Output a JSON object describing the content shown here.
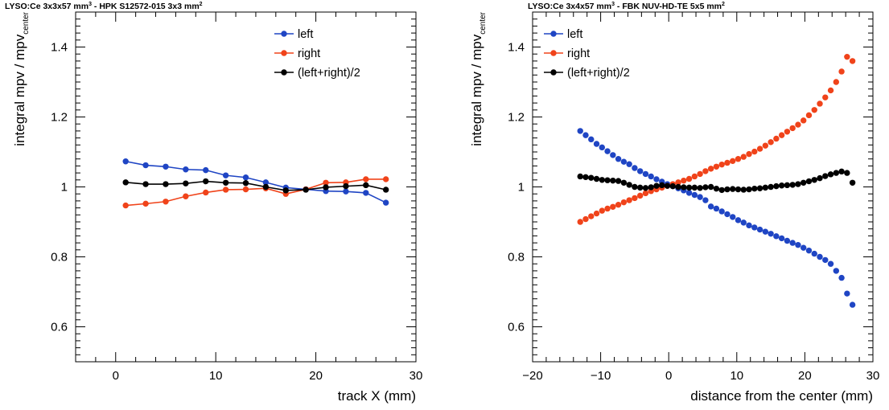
{
  "chart_data": [
    {
      "type": "scatter",
      "title": "LYSO:Ce 3x3x57 mm³ - HPK S12572-015 3x3 mm²",
      "title_parts": [
        "LYSO:Ce 3x3x57 mm",
        "3",
        " - HPK S12572-015 3x3 mm",
        "2"
      ],
      "xlabel": "track X (mm)",
      "ylabel": "integral mpv / mpv",
      "ylabel_sub": "center",
      "xlim": [
        -4,
        30
      ],
      "ylim": [
        0.5,
        1.5
      ],
      "xticks": [
        0,
        10,
        20,
        30
      ],
      "yticks": [
        0.6,
        0.8,
        1,
        1.2,
        1.4
      ],
      "connected": true,
      "legend_position": "top-right",
      "series": [
        {
          "name": "left",
          "color": "#1f45c4",
          "x": [
            1,
            3,
            5,
            7,
            9,
            11,
            13,
            15,
            17,
            19,
            21,
            23,
            25,
            27
          ],
          "y": [
            1.073,
            1.062,
            1.058,
            1.05,
            1.048,
            1.033,
            1.027,
            1.013,
            0.998,
            0.993,
            0.988,
            0.987,
            0.983,
            0.955
          ]
        },
        {
          "name": "right",
          "color": "#f0431a",
          "x": [
            1,
            3,
            5,
            7,
            9,
            11,
            13,
            15,
            17,
            19,
            21,
            23,
            25,
            27
          ],
          "y": [
            0.947,
            0.952,
            0.958,
            0.973,
            0.984,
            0.992,
            0.993,
            0.996,
            0.98,
            0.993,
            1.012,
            1.013,
            1.022,
            1.022
          ]
        },
        {
          "name": "(left+right)/2",
          "color": "#000000",
          "x": [
            1,
            3,
            5,
            7,
            9,
            11,
            13,
            15,
            17,
            19,
            21,
            23,
            25,
            27
          ],
          "y": [
            1.013,
            1.008,
            1.008,
            1.01,
            1.016,
            1.012,
            1.011,
            1.0,
            0.99,
            0.992,
            0.999,
            1.002,
            1.005,
            0.992
          ]
        }
      ]
    },
    {
      "type": "scatter",
      "title": "LYSO:Ce 3x4x57 mm³ - FBK NUV-HD-TE 5x5 mm²",
      "title_parts": [
        "LYSO:Ce 3x4x57 mm",
        "3",
        " - FBK NUV-HD-TE 5x5 mm",
        "2"
      ],
      "xlabel": "distance from the center (mm)",
      "ylabel": "integral mpv / mpv",
      "ylabel_sub": "center",
      "xlim": [
        -20,
        30
      ],
      "ylim": [
        0.5,
        1.5
      ],
      "xticks": [
        -20,
        -10,
        0,
        10,
        20,
        30
      ],
      "yticks": [
        0.6,
        0.8,
        1,
        1.2,
        1.4
      ],
      "connected": false,
      "legend_position": "top-left",
      "series": [
        {
          "name": "left",
          "color": "#1f45c4",
          "x": [
            -13,
            -12.2,
            -11.4,
            -10.6,
            -9.8,
            -9,
            -8.2,
            -7.4,
            -6.6,
            -5.8,
            -5,
            -4.2,
            -3.4,
            -2.6,
            -1.8,
            -1,
            -0.2,
            0.6,
            1.4,
            2.2,
            3,
            3.8,
            4.6,
            5.4,
            6.2,
            7,
            7.8,
            8.6,
            9.4,
            10.2,
            11,
            11.8,
            12.6,
            13.4,
            14.2,
            15,
            15.8,
            16.6,
            17.4,
            18.2,
            19,
            19.8,
            20.6,
            21.4,
            22.2,
            23,
            23.8,
            24.6,
            25.4,
            26.2,
            27
          ],
          "y": [
            1.16,
            1.148,
            1.136,
            1.123,
            1.113,
            1.102,
            1.091,
            1.08,
            1.072,
            1.065,
            1.054,
            1.045,
            1.037,
            1.03,
            1.022,
            1.015,
            1.008,
            1.002,
            0.996,
            0.99,
            0.983,
            0.977,
            0.971,
            0.962,
            0.944,
            0.938,
            0.93,
            0.922,
            0.914,
            0.905,
            0.898,
            0.89,
            0.884,
            0.878,
            0.872,
            0.866,
            0.859,
            0.853,
            0.846,
            0.84,
            0.834,
            0.826,
            0.818,
            0.809,
            0.8,
            0.791,
            0.78,
            0.76,
            0.74,
            0.695,
            0.663
          ]
        },
        {
          "name": "right",
          "color": "#f0431a",
          "x": [
            -13,
            -12.2,
            -11.4,
            -10.6,
            -9.8,
            -9,
            -8.2,
            -7.4,
            -6.6,
            -5.8,
            -5,
            -4.2,
            -3.4,
            -2.6,
            -1.8,
            -1,
            -0.2,
            0.6,
            1.4,
            2.2,
            3,
            3.8,
            4.6,
            5.4,
            6.2,
            7,
            7.8,
            8.6,
            9.4,
            10.2,
            11,
            11.8,
            12.6,
            13.4,
            14.2,
            15,
            15.8,
            16.6,
            17.4,
            18.2,
            19,
            19.8,
            20.6,
            21.4,
            22.2,
            23,
            23.8,
            24.6,
            25.4,
            26.2,
            27
          ],
          "y": [
            0.9,
            0.908,
            0.916,
            0.924,
            0.932,
            0.938,
            0.943,
            0.949,
            0.956,
            0.962,
            0.968,
            0.975,
            0.982,
            0.988,
            0.993,
            0.998,
            1.003,
            1.008,
            1.013,
            1.018,
            1.023,
            1.03,
            1.037,
            1.045,
            1.052,
            1.058,
            1.064,
            1.069,
            1.074,
            1.08,
            1.086,
            1.094,
            1.101,
            1.109,
            1.118,
            1.128,
            1.138,
            1.148,
            1.158,
            1.168,
            1.178,
            1.19,
            1.205,
            1.22,
            1.238,
            1.256,
            1.276,
            1.3,
            1.33,
            1.372,
            1.36
          ]
        },
        {
          "name": "(left+right)/2",
          "color": "#000000",
          "x": [
            -13,
            -12.2,
            -11.4,
            -10.6,
            -9.8,
            -9,
            -8.2,
            -7.4,
            -6.6,
            -5.8,
            -5,
            -4.2,
            -3.4,
            -2.6,
            -1.8,
            -1,
            -0.2,
            0.6,
            1.4,
            2.2,
            3,
            3.8,
            4.6,
            5.4,
            6.2,
            7,
            7.8,
            8.6,
            9.4,
            10.2,
            11,
            11.8,
            12.6,
            13.4,
            14.2,
            15,
            15.8,
            16.6,
            17.4,
            18.2,
            19,
            19.8,
            20.6,
            21.4,
            22.2,
            23,
            23.8,
            24.6,
            25.4,
            26.2,
            27
          ],
          "y": [
            1.03,
            1.028,
            1.026,
            1.023,
            1.02,
            1.019,
            1.018,
            1.017,
            1.012,
            1.006,
            1.0,
            0.998,
            0.997,
            0.999,
            1.003,
            1.005,
            1.003,
            1.002,
            1.0,
            0.999,
            0.998,
            0.998,
            0.997,
            0.999,
            1.0,
            0.995,
            0.991,
            0.993,
            0.994,
            0.993,
            0.992,
            0.993,
            0.995,
            0.996,
            0.998,
            1.0,
            1.002,
            1.004,
            1.005,
            1.006,
            1.008,
            1.012,
            1.016,
            1.02,
            1.025,
            1.031,
            1.036,
            1.04,
            1.044,
            1.04,
            1.012
          ]
        }
      ]
    }
  ]
}
